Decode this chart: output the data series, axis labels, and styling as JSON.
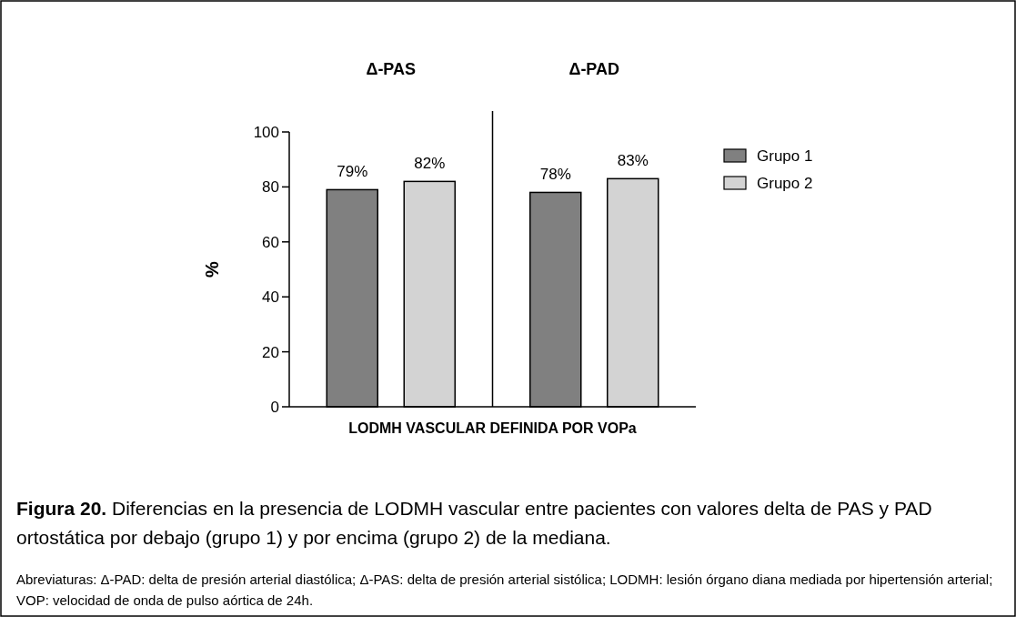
{
  "chart_data": {
    "type": "bar",
    "categories": [
      "Δ-PAS",
      "Δ-PAD"
    ],
    "series": [
      {
        "name": "Grupo 1",
        "color": "#808080",
        "values": [
          79,
          78
        ],
        "value_labels": [
          "79%",
          "78%"
        ]
      },
      {
        "name": "Grupo 2",
        "color": "#d3d3d3",
        "values": [
          82,
          83
        ],
        "value_labels": [
          "82%",
          "83%"
        ]
      }
    ],
    "xlabel": "LODMH VASCULAR DEFINIDA POR VOPa",
    "ylabel": "%",
    "ylim": [
      0,
      100
    ],
    "yticks": [
      0,
      20,
      40,
      60,
      80,
      100
    ],
    "grid": false,
    "legend": "right",
    "annotations": [
      "Figura 20. Diferencias en la presencia de LODMH vascular entre pacientes con valores delta de PAS y PAD ortostática por debajo (grupo 1) y por encima (grupo 2) de la mediana.",
      "Abreviaturas: Δ-PAD: delta de presión arterial diastólica; Δ-PAS: delta de presión arterial sistólica; LODMH: lesión órgano diana mediada por hipertensión arterial; VOP: velocidad de onda de pulso aórtica de 24h."
    ]
  }
}
